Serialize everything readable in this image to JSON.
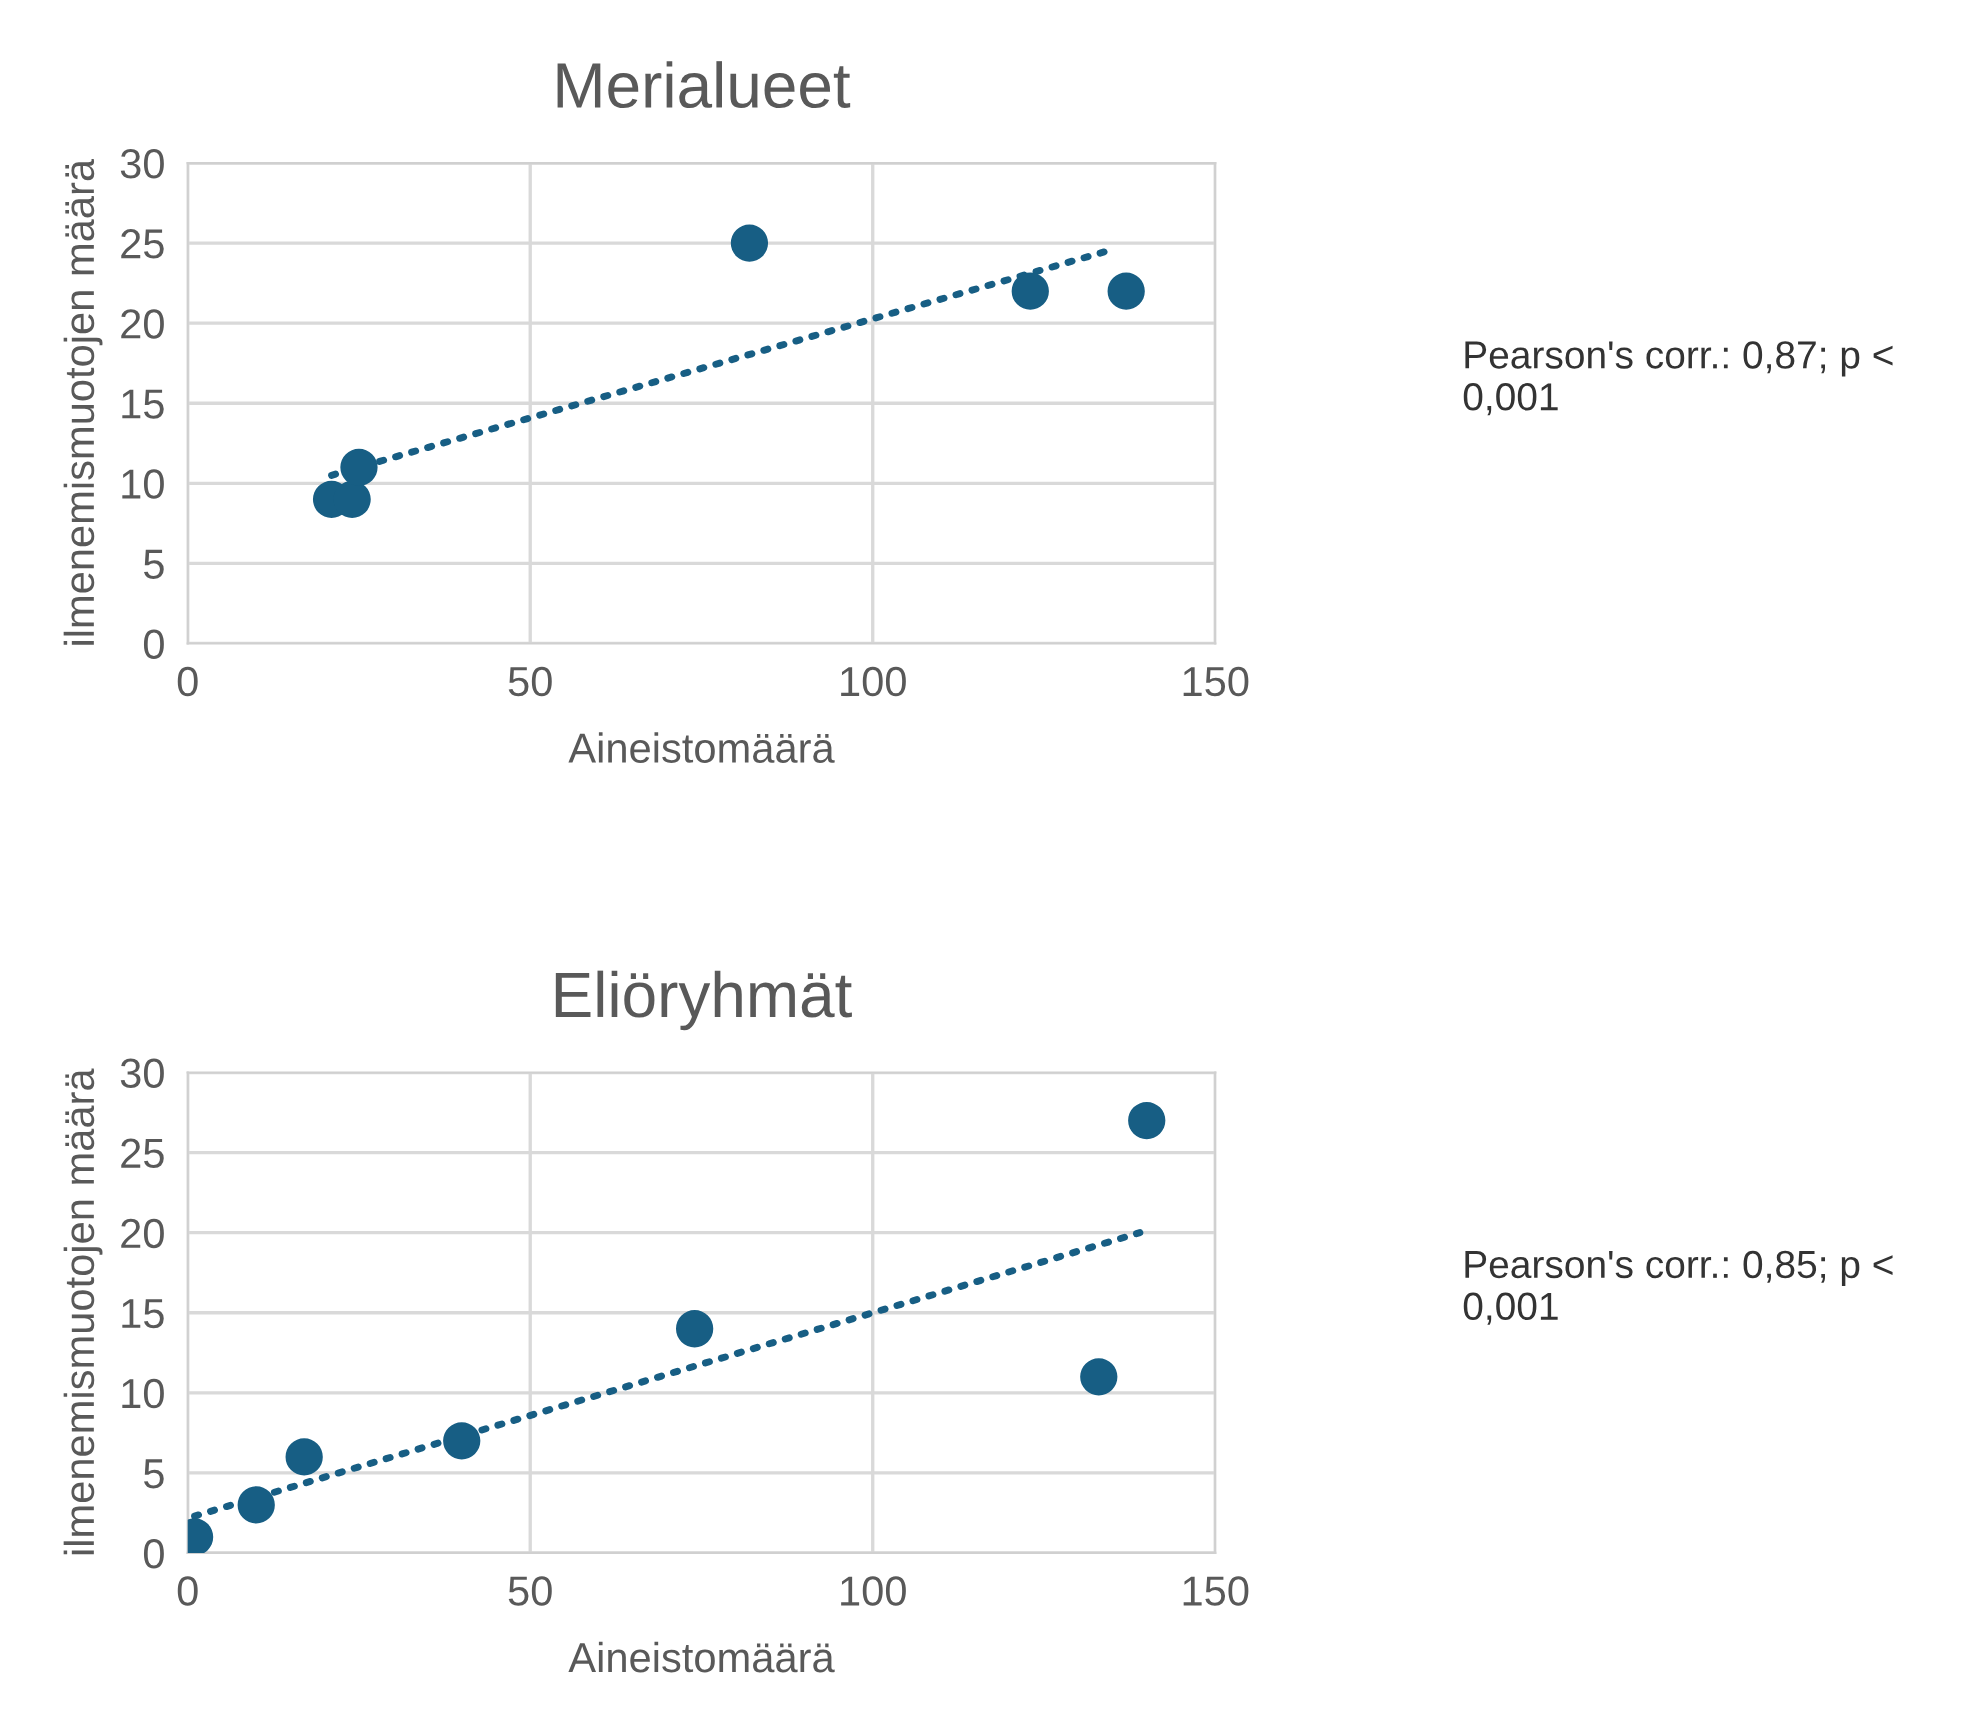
{
  "chart_data": [
    {
      "type": "scatter",
      "title": "Merialueet",
      "xlabel": "Aineistomäärä",
      "ylabel": "ilmenemismuotojen määrä",
      "xlim": [
        0,
        150
      ],
      "xticks": [
        0,
        50,
        100,
        150
      ],
      "ylim": [
        0,
        30
      ],
      "yticks": [
        0,
        5,
        10,
        15,
        20,
        25,
        30
      ],
      "grid": true,
      "series": [
        {
          "marker": "circle",
          "color": "#175e84",
          "x": [
            21,
            24,
            25,
            82,
            123,
            137
          ],
          "values": [
            9,
            9,
            11,
            25,
            22,
            22
          ]
        },
        {
          "type": "line",
          "color": "#175e84",
          "line_style": "dotted",
          "marker": "none",
          "x": [
            21,
            135
          ],
          "values": [
            10.5,
            24.6
          ]
        }
      ],
      "annotations": [
        "Pearson's corr.: 0,87; p < 0,001"
      ]
    },
    {
      "type": "scatter",
      "title": "Eliöryhmät",
      "xlabel": "Aineistomäärä",
      "ylabel": "ilmenemismuotojen määrä",
      "xlim": [
        0,
        150
      ],
      "xticks": [
        0,
        50,
        100,
        150
      ],
      "ylim": [
        0,
        30
      ],
      "yticks": [
        0,
        5,
        10,
        15,
        20,
        25,
        30
      ],
      "grid": true,
      "series": [
        {
          "marker": "circle",
          "color": "#175e84",
          "x": [
            1,
            10,
            17,
            40,
            74,
            133,
            140
          ],
          "values": [
            1,
            3,
            6,
            7,
            14,
            11,
            27
          ]
        },
        {
          "type": "line",
          "color": "#175e84",
          "line_style": "dotted",
          "marker": "none",
          "x": [
            1,
            139
          ],
          "values": [
            2.3,
            20
          ]
        }
      ],
      "annotations": [
        "Pearson's corr.: 0,85; p < 0,001"
      ]
    }
  ]
}
